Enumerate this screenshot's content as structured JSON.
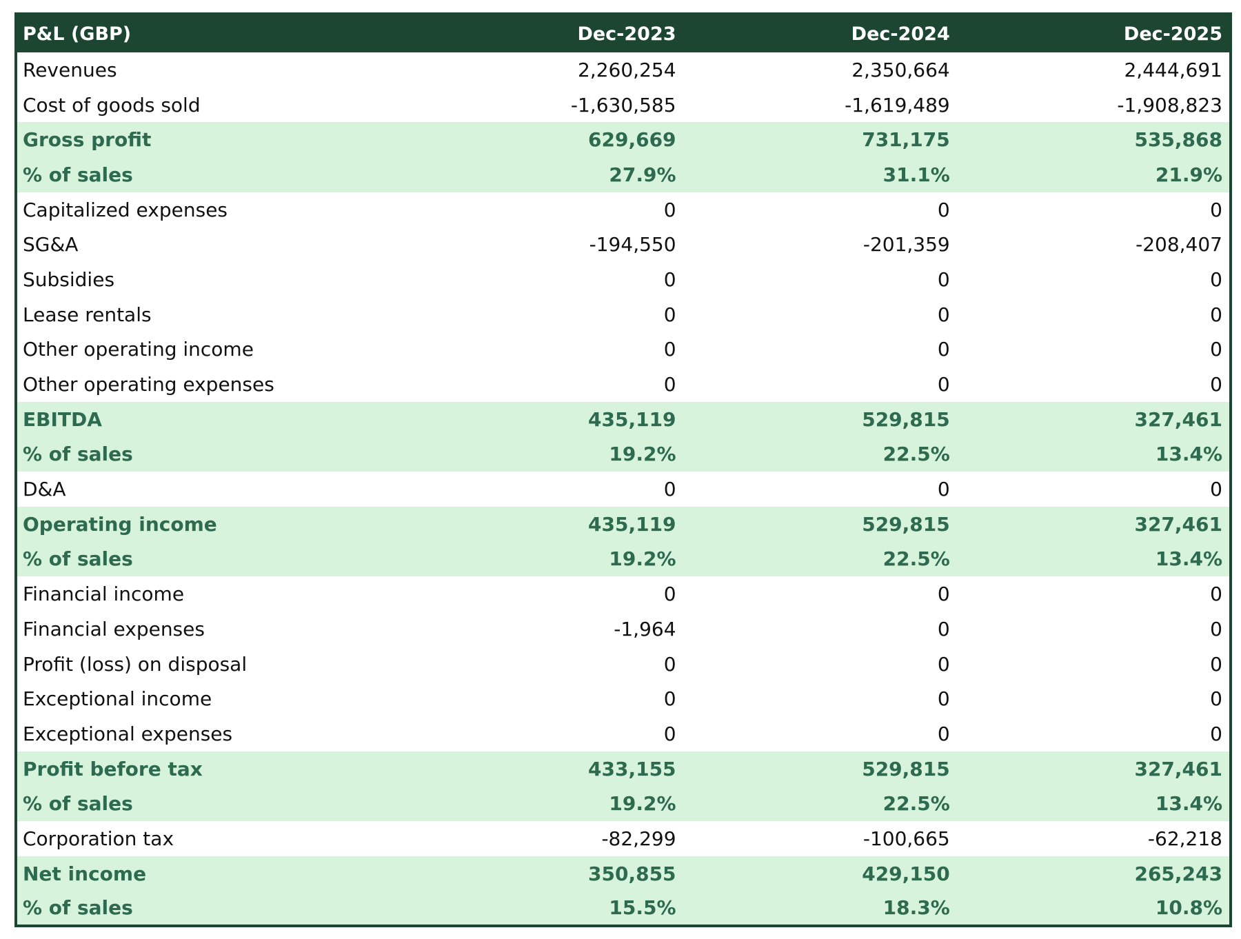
{
  "table": {
    "header": {
      "label": "P&L (GBP)",
      "periods": [
        "Dec-2023",
        "Dec-2024",
        "Dec-2025"
      ]
    },
    "rows": [
      {
        "label": "Revenues",
        "values": [
          "2,260,254",
          "2,350,664",
          "2,444,691"
        ],
        "highlight": false
      },
      {
        "label": "Cost of goods sold",
        "values": [
          "-1,630,585",
          "-1,619,489",
          "-1,908,823"
        ],
        "highlight": false
      },
      {
        "label": "Gross profit",
        "values": [
          "629,669",
          "731,175",
          "535,868"
        ],
        "highlight": true
      },
      {
        "label": "% of sales",
        "values": [
          "27.9%",
          "31.1%",
          "21.9%"
        ],
        "highlight": true
      },
      {
        "label": "Capitalized expenses",
        "values": [
          "0",
          "0",
          "0"
        ],
        "highlight": false
      },
      {
        "label": "SG&A",
        "values": [
          "-194,550",
          "-201,359",
          "-208,407"
        ],
        "highlight": false
      },
      {
        "label": "Subsidies",
        "values": [
          "0",
          "0",
          "0"
        ],
        "highlight": false
      },
      {
        "label": "Lease rentals",
        "values": [
          "0",
          "0",
          "0"
        ],
        "highlight": false
      },
      {
        "label": "Other operating income",
        "values": [
          "0",
          "0",
          "0"
        ],
        "highlight": false
      },
      {
        "label": "Other operating expenses",
        "values": [
          "0",
          "0",
          "0"
        ],
        "highlight": false
      },
      {
        "label": "EBITDA",
        "values": [
          "435,119",
          "529,815",
          "327,461"
        ],
        "highlight": true
      },
      {
        "label": "% of sales",
        "values": [
          "19.2%",
          "22.5%",
          "13.4%"
        ],
        "highlight": true
      },
      {
        "label": "D&A",
        "values": [
          "0",
          "0",
          "0"
        ],
        "highlight": false
      },
      {
        "label": "Operating income",
        "values": [
          "435,119",
          "529,815",
          "327,461"
        ],
        "highlight": true
      },
      {
        "label": "% of sales",
        "values": [
          "19.2%",
          "22.5%",
          "13.4%"
        ],
        "highlight": true
      },
      {
        "label": "Financial income",
        "values": [
          "0",
          "0",
          "0"
        ],
        "highlight": false
      },
      {
        "label": "Financial expenses",
        "values": [
          "-1,964",
          "0",
          "0"
        ],
        "highlight": false
      },
      {
        "label": "Profit (loss) on disposal",
        "values": [
          "0",
          "0",
          "0"
        ],
        "highlight": false
      },
      {
        "label": "Exceptional income",
        "values": [
          "0",
          "0",
          "0"
        ],
        "highlight": false
      },
      {
        "label": "Exceptional expenses",
        "values": [
          "0",
          "0",
          "0"
        ],
        "highlight": false
      },
      {
        "label": "Profit before tax",
        "values": [
          "433,155",
          "529,815",
          "327,461"
        ],
        "highlight": true
      },
      {
        "label": "% of sales",
        "values": [
          "19.2%",
          "22.5%",
          "13.4%"
        ],
        "highlight": true
      },
      {
        "label": "Corporation tax",
        "values": [
          "-82,299",
          "-100,665",
          "-62,218"
        ],
        "highlight": false
      },
      {
        "label": "Net income",
        "values": [
          "350,855",
          "429,150",
          "265,243"
        ],
        "highlight": true
      },
      {
        "label": "% of sales",
        "values": [
          "15.5%",
          "18.3%",
          "10.8%"
        ],
        "highlight": true
      }
    ]
  },
  "colors": {
    "header_bg": "#1c4532",
    "header_text": "#ffffff",
    "highlight_bg": "#d8f3dc",
    "highlight_text": "#2d6a4f",
    "normal_text": "#111111"
  }
}
